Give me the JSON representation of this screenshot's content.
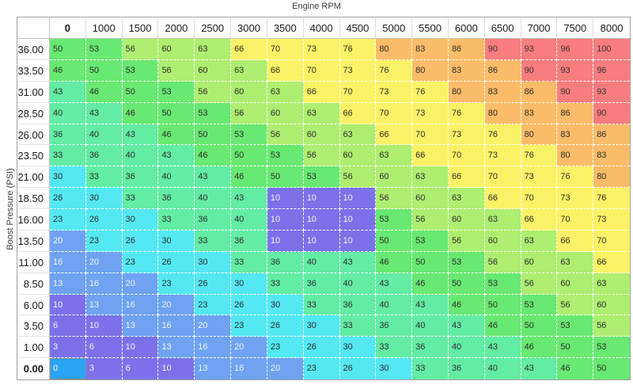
{
  "title": "Engine RPM",
  "y_axis_label": "Boost Pressure (PSI)",
  "table": {
    "columns": [
      "0",
      "1000",
      "1500",
      "2000",
      "2500",
      "3000",
      "3500",
      "4000",
      "4500",
      "5000",
      "5500",
      "6000",
      "6500",
      "7000",
      "7500",
      "8000"
    ],
    "rows": [
      {
        "label": "36.00",
        "values": [
          50,
          53,
          56,
          60,
          63,
          66,
          70,
          73,
          76,
          80,
          83,
          86,
          90,
          93,
          96,
          100
        ]
      },
      {
        "label": "33.50",
        "values": [
          46,
          50,
          53,
          56,
          60,
          63,
          66,
          70,
          73,
          76,
          80,
          83,
          86,
          90,
          93,
          96
        ]
      },
      {
        "label": "31.00",
        "values": [
          43,
          46,
          50,
          53,
          56,
          60,
          63,
          66,
          70,
          73,
          76,
          80,
          83,
          86,
          90,
          93
        ]
      },
      {
        "label": "28.50",
        "values": [
          40,
          43,
          46,
          50,
          53,
          56,
          60,
          63,
          66,
          70,
          73,
          76,
          80,
          83,
          86,
          90
        ]
      },
      {
        "label": "26.00",
        "values": [
          36,
          40,
          43,
          46,
          50,
          53,
          56,
          60,
          63,
          66,
          70,
          73,
          76,
          80,
          83,
          86
        ]
      },
      {
        "label": "23.50",
        "values": [
          33,
          36,
          40,
          43,
          46,
          50,
          53,
          56,
          60,
          63,
          66,
          70,
          73,
          76,
          80,
          83
        ]
      },
      {
        "label": "21.00",
        "values": [
          30,
          33,
          36,
          40,
          43,
          46,
          50,
          53,
          56,
          60,
          63,
          66,
          70,
          73,
          76,
          80
        ]
      },
      {
        "label": "18.50",
        "values": [
          26,
          30,
          33,
          36,
          40,
          43,
          10,
          10,
          10,
          56,
          60,
          63,
          66,
          70,
          73,
          76
        ]
      },
      {
        "label": "16.00",
        "values": [
          23,
          26,
          30,
          33,
          36,
          40,
          10,
          10,
          10,
          53,
          56,
          60,
          63,
          66,
          70,
          73
        ]
      },
      {
        "label": "13.50",
        "values": [
          20,
          23,
          26,
          30,
          33,
          36,
          10,
          10,
          10,
          50,
          53,
          56,
          60,
          63,
          66,
          70
        ]
      },
      {
        "label": "11.00",
        "values": [
          16,
          20,
          23,
          26,
          30,
          33,
          36,
          40,
          43,
          46,
          50,
          53,
          56,
          60,
          63,
          66
        ]
      },
      {
        "label": "8.50",
        "values": [
          13,
          16,
          20,
          23,
          26,
          30,
          33,
          36,
          40,
          43,
          46,
          50,
          53,
          56,
          60,
          63
        ]
      },
      {
        "label": "6.00",
        "values": [
          10,
          13,
          16,
          20,
          23,
          26,
          30,
          33,
          36,
          40,
          43,
          46,
          50,
          53,
          56,
          60
        ]
      },
      {
        "label": "3.50",
        "values": [
          6,
          10,
          13,
          16,
          20,
          23,
          26,
          30,
          33,
          36,
          40,
          43,
          46,
          50,
          53,
          56
        ]
      },
      {
        "label": "1.00",
        "values": [
          3,
          6,
          10,
          13,
          16,
          20,
          23,
          26,
          30,
          33,
          36,
          40,
          43,
          46,
          50,
          53
        ]
      },
      {
        "label": "0.00",
        "values": [
          0,
          3,
          6,
          10,
          13,
          16,
          20,
          23,
          26,
          30,
          33,
          36,
          40,
          43,
          46,
          50
        ]
      }
    ],
    "selected_cell": {
      "row": "0.00",
      "col": "0",
      "value": 0
    }
  },
  "colors": {
    "value_bands": [
      {
        "max": 10,
        "bg": "#7b72e9",
        "text": "#f4f3fc"
      },
      {
        "max": 20,
        "bg": "#6fa3f1",
        "text": "#eef4fd"
      },
      {
        "max": 30,
        "bg": "#54e8f3",
        "text": "#2e2e2e"
      },
      {
        "max": 43,
        "bg": "#63eca4",
        "text": "#2e2e2e"
      },
      {
        "max": 53,
        "bg": "#68e972",
        "text": "#2e2e2e"
      },
      {
        "max": 63,
        "bg": "#aeee70",
        "text": "#2e2e2e"
      },
      {
        "max": 76,
        "bg": "#faf266",
        "text": "#2e2e2e"
      },
      {
        "max": 86,
        "bg": "#fbbc69",
        "text": "#2e2e2e"
      },
      {
        "max": 100,
        "bg": "#f87d7f",
        "text": "#3a3232"
      }
    ],
    "selected_bg": "#29a3f2",
    "selected_text": "#ffffff",
    "selected_border": "#8a8a8a"
  }
}
